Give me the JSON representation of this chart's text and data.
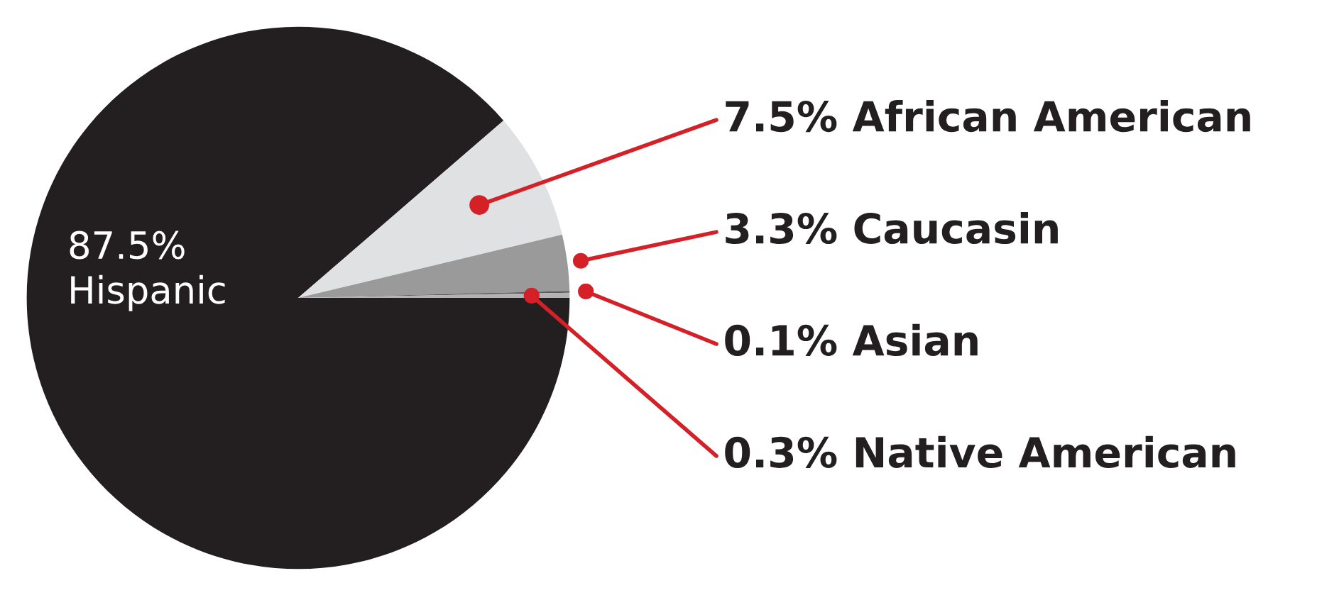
{
  "chart_data": {
    "type": "pie",
    "categories": [
      "Hispanic",
      "African American",
      "Caucasin",
      "Asian",
      "Native American"
    ],
    "values": [
      87.5,
      7.5,
      3.3,
      0.1,
      0.3
    ],
    "value_labels": [
      "87.5%",
      "7.5%",
      "3.3%",
      "0.1%",
      "0.3%"
    ],
    "colors": [
      "#231f20",
      "#e0e1e2",
      "#9a9a9a",
      "#5a5a5a",
      "#b3b3b3"
    ],
    "legend": false
  }
}
